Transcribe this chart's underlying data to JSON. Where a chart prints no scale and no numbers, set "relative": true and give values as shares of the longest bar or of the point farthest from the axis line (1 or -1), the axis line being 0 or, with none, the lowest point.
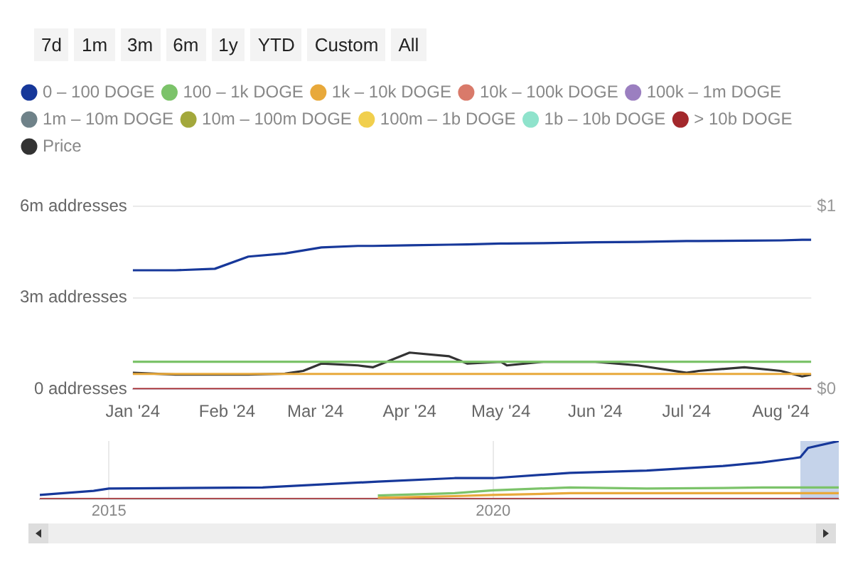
{
  "chart_data": [
    {
      "type": "line",
      "annotations": [
        "7d",
        "1m",
        "3m",
        "6m",
        "1y",
        "YTD",
        "Custom",
        "All"
      ],
      "x": [
        "2024-01-01",
        "2024-01-15",
        "2024-01-28",
        "2024-02-08",
        "2024-02-20",
        "2024-02-26",
        "2024-03-03",
        "2024-03-15",
        "2024-03-20",
        "2024-04-01",
        "2024-04-14",
        "2024-04-20",
        "2024-05-01",
        "2024-05-03",
        "2024-05-15",
        "2024-06-01",
        "2024-06-15",
        "2024-07-01",
        "2024-07-05",
        "2024-07-20",
        "2024-08-01",
        "2024-08-08",
        "2024-08-11"
      ],
      "series": [
        {
          "name": "0 – 100 DOGE",
          "color": "#17389a",
          "values": [
            3.9,
            3.9,
            3.95,
            4.35,
            4.45,
            4.55,
            4.65,
            4.7,
            4.7,
            4.72,
            4.74,
            4.75,
            4.78,
            4.78,
            4.79,
            4.82,
            4.83,
            4.86,
            4.86,
            4.87,
            4.88,
            4.9,
            4.9
          ]
        },
        {
          "name": "100 – 1k DOGE",
          "color": "#7cc36a",
          "values": [
            0.9,
            0.9,
            0.9,
            0.9,
            0.9,
            0.9,
            0.9,
            0.9,
            0.9,
            0.9,
            0.9,
            0.9,
            0.9,
            0.9,
            0.9,
            0.9,
            0.9,
            0.9,
            0.9,
            0.9,
            0.9,
            0.9,
            0.9
          ]
        },
        {
          "name": "1k – 10k DOGE",
          "color": "#e8a93b",
          "values": [
            0.5,
            0.5,
            0.5,
            0.5,
            0.5,
            0.5,
            0.5,
            0.5,
            0.5,
            0.5,
            0.5,
            0.5,
            0.5,
            0.5,
            0.5,
            0.5,
            0.5,
            0.5,
            0.5,
            0.5,
            0.5,
            0.5,
            0.5
          ]
        },
        {
          "name": "10k – 100k DOGE",
          "color": "#d97a6a",
          "values": [
            null,
            null,
            null,
            null,
            null,
            null,
            null,
            null,
            null,
            null,
            null,
            null,
            null,
            null,
            null,
            null,
            null,
            null,
            null,
            null,
            null,
            null,
            null
          ]
        },
        {
          "name": "100k – 1m DOGE",
          "color": "#9b7fc0",
          "values": [
            null,
            null,
            null,
            null,
            null,
            null,
            null,
            null,
            null,
            null,
            null,
            null,
            null,
            null,
            null,
            null,
            null,
            null,
            null,
            null,
            null,
            null,
            null
          ]
        },
        {
          "name": "1m – 10m DOGE",
          "color": "#6f8289",
          "values": [
            null,
            null,
            null,
            null,
            null,
            null,
            null,
            null,
            null,
            null,
            null,
            null,
            null,
            null,
            null,
            null,
            null,
            null,
            null,
            null,
            null,
            null,
            null
          ]
        },
        {
          "name": "10m – 100m DOGE",
          "color": "#a3a83c",
          "values": [
            null,
            null,
            null,
            null,
            null,
            null,
            null,
            null,
            null,
            null,
            null,
            null,
            null,
            null,
            null,
            null,
            null,
            null,
            null,
            null,
            null,
            null,
            null
          ]
        },
        {
          "name": "100m – 1b DOGE",
          "color": "#f1cf4d",
          "values": [
            null,
            null,
            null,
            null,
            null,
            null,
            null,
            null,
            null,
            null,
            null,
            null,
            null,
            null,
            null,
            null,
            null,
            null,
            null,
            null,
            null,
            null,
            null
          ]
        },
        {
          "name": "1b – 10b DOGE",
          "color": "#8fe3cc",
          "values": [
            null,
            null,
            null,
            null,
            null,
            null,
            null,
            null,
            null,
            null,
            null,
            null,
            null,
            null,
            null,
            null,
            null,
            null,
            null,
            null,
            null,
            null,
            null
          ]
        },
        {
          "name": "> 10b DOGE",
          "color": "#a3282c",
          "values": [
            0,
            0,
            0,
            0,
            0,
            0,
            0,
            0,
            0,
            0,
            0,
            0,
            0,
            0,
            0,
            0,
            0,
            0,
            0,
            0,
            0,
            0,
            0
          ]
        },
        {
          "name": "Price",
          "color": "#333333",
          "axis": "y2",
          "values": [
            0.09,
            0.08,
            0.08,
            0.08,
            0.085,
            0.1,
            0.14,
            0.13,
            0.12,
            0.2,
            0.18,
            0.14,
            0.15,
            0.13,
            0.15,
            0.15,
            0.13,
            0.09,
            0.1,
            0.12,
            0.1,
            0.07,
            0.08
          ]
        }
      ],
      "xlim": [
        "2024-01-01",
        "2024-08-11"
      ],
      "xticks": [
        {
          "value": "2024-01-01",
          "label": "Jan '24"
        },
        {
          "value": "2024-02-01",
          "label": "Feb '24"
        },
        {
          "value": "2024-03-01",
          "label": "Mar '24"
        },
        {
          "value": "2024-04-01",
          "label": "Apr '24"
        },
        {
          "value": "2024-05-01",
          "label": "May '24"
        },
        {
          "value": "2024-06-01",
          "label": "Jun '24"
        },
        {
          "value": "2024-07-01",
          "label": "Jul '24"
        },
        {
          "value": "2024-08-01",
          "label": "Aug '24"
        }
      ],
      "ylim": [
        0,
        6
      ],
      "yticks": [
        {
          "value": 0,
          "label": "0 addresses"
        },
        {
          "value": 3,
          "label": "3m addresses"
        },
        {
          "value": 6,
          "label": "6m addresses"
        }
      ],
      "y2lim": [
        0,
        1
      ],
      "y2ticks": [
        {
          "value": 0,
          "label": "$0"
        },
        {
          "value": 1,
          "label": "$1"
        }
      ],
      "grid": "y",
      "legend": "top left",
      "marker": "none",
      "line_style": "solid"
    },
    {
      "type": "line",
      "relative": true,
      "x": [
        2014.1,
        2014.8,
        2015,
        2017,
        2018.5,
        2019.5,
        2020,
        2021,
        2022,
        2023,
        2023.5,
        2023.9,
        2024.0,
        2024.1,
        2024.5
      ],
      "series": [
        {
          "color": "#17389a",
          "values": [
            0.07,
            0.14,
            0.18,
            0.2,
            0.3,
            0.36,
            0.36,
            0.45,
            0.49,
            0.57,
            0.63,
            0.7,
            0.72,
            0.88,
            1
          ]
        },
        {
          "color": "#7cc36a",
          "values": [
            null,
            null,
            null,
            null,
            0.06,
            0.1,
            0.15,
            0.2,
            0.18,
            0.19,
            0.2,
            0.2,
            0.2,
            0.2,
            0.2
          ]
        },
        {
          "color": "#e8a93b",
          "values": [
            null,
            null,
            null,
            null,
            0.02,
            0.05,
            0.07,
            0.1,
            0.1,
            0.1,
            0.1,
            0.1,
            0.1,
            0.1,
            0.1
          ]
        },
        {
          "color": "#a3282c",
          "values": [
            0,
            0,
            0,
            0,
            0,
            0,
            0,
            0,
            0,
            0,
            0,
            0,
            0,
            0,
            0
          ]
        }
      ],
      "xlim": [
        2014.1,
        2024.5
      ],
      "xticks": [
        2015,
        2020
      ],
      "bands": [
        {
          "axis": "x",
          "from": 2024.0,
          "to": 2024.5,
          "color": "#c5d3ea"
        }
      ],
      "grid": "x",
      "tick_labels": "x",
      "legend": false,
      "marker": "none",
      "line_style": "solid"
    }
  ]
}
